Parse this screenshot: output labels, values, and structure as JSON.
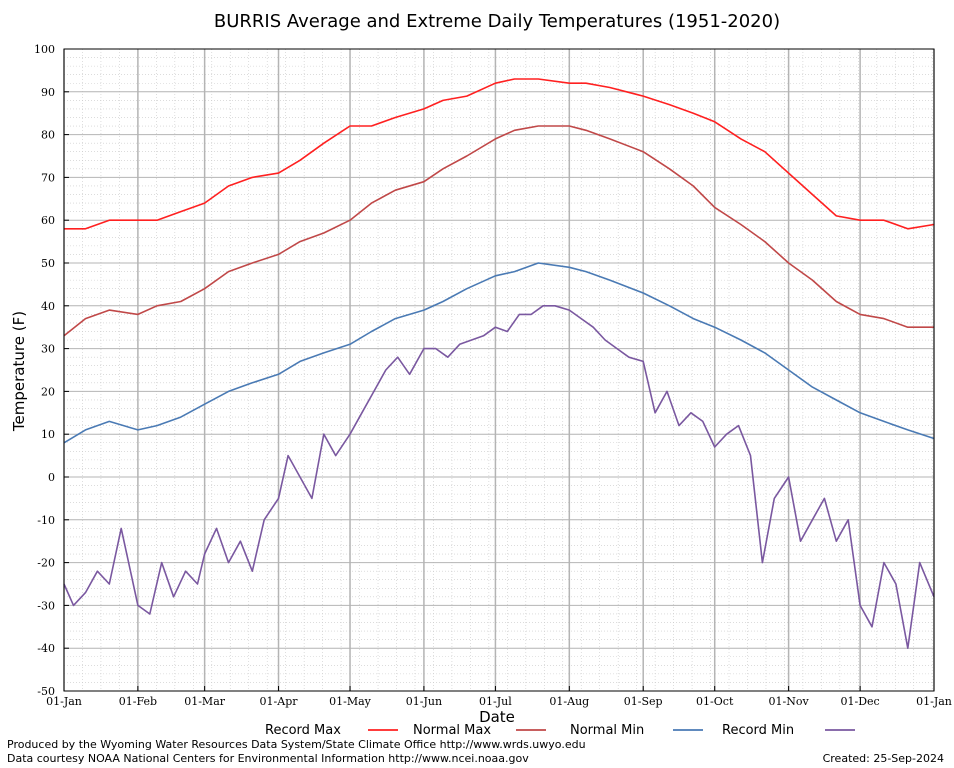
{
  "chart_data": {
    "type": "line",
    "title": "BURRIS Average and Extreme Daily Temperatures (1951-2020)",
    "xlabel": "Date",
    "ylabel": "Temperature (F)",
    "ylim": [
      -50,
      100
    ],
    "yticks": [
      100,
      90,
      80,
      70,
      60,
      50,
      40,
      30,
      20,
      10,
      0,
      -10,
      -20,
      -30,
      -40,
      -50
    ],
    "x_range_days": [
      1,
      366
    ],
    "xtick_labels": [
      "01-Jan",
      "01-Feb",
      "01-Mar",
      "01-Apr",
      "01-May",
      "01-Jun",
      "01-Jul",
      "01-Aug",
      "01-Sep",
      "01-Oct",
      "01-Nov",
      "01-Dec",
      "01-Jan"
    ],
    "xtick_days": [
      1,
      32,
      60,
      91,
      121,
      152,
      182,
      213,
      244,
      274,
      305,
      335,
      366
    ],
    "grid": true,
    "legend_position": "bottom",
    "series": [
      {
        "name": "Record Max",
        "color": "#ff2020",
        "x": [
          1,
          10,
          20,
          32,
          40,
          50,
          60,
          70,
          80,
          91,
          100,
          110,
          121,
          130,
          140,
          152,
          160,
          170,
          182,
          190,
          200,
          213,
          220,
          230,
          244,
          255,
          265,
          274,
          285,
          295,
          305,
          315,
          325,
          335,
          345,
          355,
          366
        ],
        "y": [
          58,
          58,
          60,
          60,
          60,
          62,
          64,
          68,
          70,
          71,
          74,
          78,
          82,
          82,
          84,
          86,
          88,
          89,
          92,
          93,
          93,
          92,
          92,
          91,
          89,
          87,
          85,
          83,
          79,
          76,
          71,
          66,
          61,
          60,
          60,
          58,
          59
        ]
      },
      {
        "name": "Normal Max",
        "color": "#c04848",
        "x": [
          1,
          10,
          20,
          32,
          40,
          50,
          60,
          70,
          80,
          91,
          100,
          110,
          121,
          130,
          140,
          152,
          160,
          170,
          182,
          190,
          200,
          213,
          220,
          230,
          244,
          255,
          265,
          274,
          285,
          295,
          305,
          315,
          325,
          335,
          345,
          355,
          366
        ],
        "y": [
          33,
          37,
          39,
          38,
          40,
          41,
          44,
          48,
          50,
          52,
          55,
          57,
          60,
          64,
          67,
          69,
          72,
          75,
          79,
          81,
          82,
          82,
          81,
          79,
          76,
          72,
          68,
          63,
          59,
          55,
          50,
          46,
          41,
          38,
          37,
          35,
          35
        ]
      },
      {
        "name": "Normal Min",
        "color": "#4a7ab4",
        "x": [
          1,
          10,
          20,
          32,
          40,
          50,
          60,
          70,
          80,
          91,
          100,
          110,
          121,
          130,
          140,
          152,
          160,
          170,
          182,
          190,
          200,
          213,
          220,
          230,
          244,
          255,
          265,
          274,
          285,
          295,
          305,
          315,
          325,
          335,
          345,
          355,
          366
        ],
        "y": [
          8,
          11,
          13,
          11,
          12,
          14,
          17,
          20,
          22,
          24,
          27,
          29,
          31,
          34,
          37,
          39,
          41,
          44,
          47,
          48,
          50,
          49,
          48,
          46,
          43,
          40,
          37,
          35,
          32,
          29,
          25,
          21,
          18,
          15,
          13,
          11,
          9
        ]
      },
      {
        "name": "Record Min",
        "color": "#7a58a0",
        "x": [
          1,
          5,
          10,
          15,
          20,
          25,
          32,
          37,
          42,
          47,
          52,
          57,
          60,
          65,
          70,
          75,
          80,
          85,
          91,
          95,
          100,
          105,
          110,
          115,
          121,
          126,
          131,
          136,
          141,
          146,
          152,
          157,
          162,
          167,
          172,
          177,
          182,
          187,
          192,
          197,
          202,
          207,
          213,
          218,
          223,
          228,
          233,
          238,
          244,
          249,
          254,
          259,
          264,
          269,
          274,
          279,
          284,
          289,
          294,
          299,
          305,
          310,
          315,
          320,
          325,
          330,
          335,
          340,
          345,
          350,
          355,
          360,
          366
        ],
        "y": [
          -25,
          -30,
          -27,
          -22,
          -25,
          -12,
          -30,
          -32,
          -20,
          -28,
          -22,
          -25,
          -18,
          -12,
          -20,
          -15,
          -22,
          -10,
          -5,
          5,
          0,
          -5,
          10,
          5,
          10,
          15,
          20,
          25,
          28,
          24,
          30,
          30,
          28,
          31,
          32,
          33,
          35,
          34,
          38,
          38,
          40,
          40,
          39,
          37,
          35,
          32,
          30,
          28,
          27,
          15,
          20,
          12,
          15,
          13,
          7,
          10,
          12,
          5,
          -20,
          -5,
          0,
          -15,
          -10,
          -5,
          -15,
          -10,
          -30,
          -35,
          -20,
          -25,
          -40,
          -20,
          -28
        ]
      }
    ]
  },
  "credits": {
    "produced_by": "Produced by the Wyoming Water Resources Data System/State Climate Office http://www.wrds.uwyo.edu",
    "data_courtesy": "Data courtesy NOAA National Centers for Environmental Information http://www.ncei.noaa.gov",
    "created": "Created:  25-Sep-2024"
  }
}
